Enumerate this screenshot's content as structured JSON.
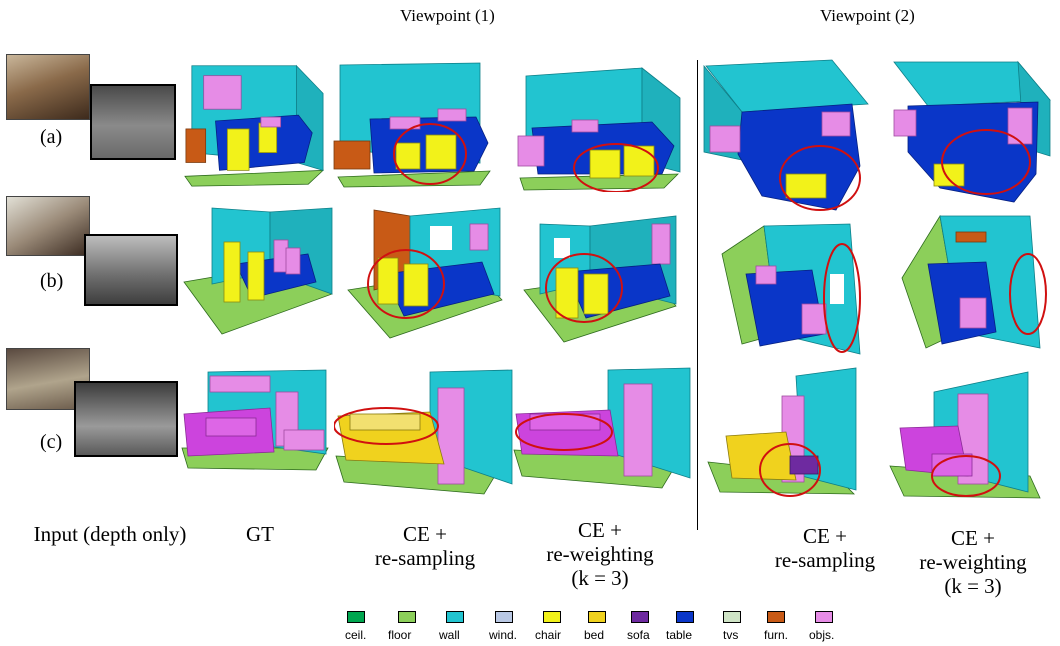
{
  "titles": {
    "viewpoint1": "Viewpoint (1)",
    "viewpoint2": "Viewpoint (2)"
  },
  "rows": [
    {
      "label": "(a)"
    },
    {
      "label": "(b)"
    },
    {
      "label": "(c)"
    }
  ],
  "columns": {
    "input": "Input (depth only)",
    "gt": "GT",
    "resampling": {
      "line1": "CE +",
      "line2": "re-sampling"
    },
    "reweighting": {
      "line1": "CE +",
      "line2": "re-weighting",
      "line3": "(k = 3)"
    }
  },
  "legend": [
    {
      "label": "ceil.",
      "color": "#00a64f"
    },
    {
      "label": "floor",
      "color": "#8ccf5a"
    },
    {
      "label": "wall",
      "color": "#22c4d0"
    },
    {
      "label": "wind.",
      "color": "#b9c8e4"
    },
    {
      "label": "chair",
      "color": "#f2f21a"
    },
    {
      "label": "bed",
      "color": "#f0d21e"
    },
    {
      "label": "sofa",
      "color": "#6e2aa0"
    },
    {
      "label": "table",
      "color": "#0a36c8"
    },
    {
      "label": "tvs",
      "color": "#cfe4c6"
    },
    {
      "label": "furn.",
      "color": "#c85a16"
    },
    {
      "label": "objs.",
      "color": "#e68ce6"
    }
  ]
}
